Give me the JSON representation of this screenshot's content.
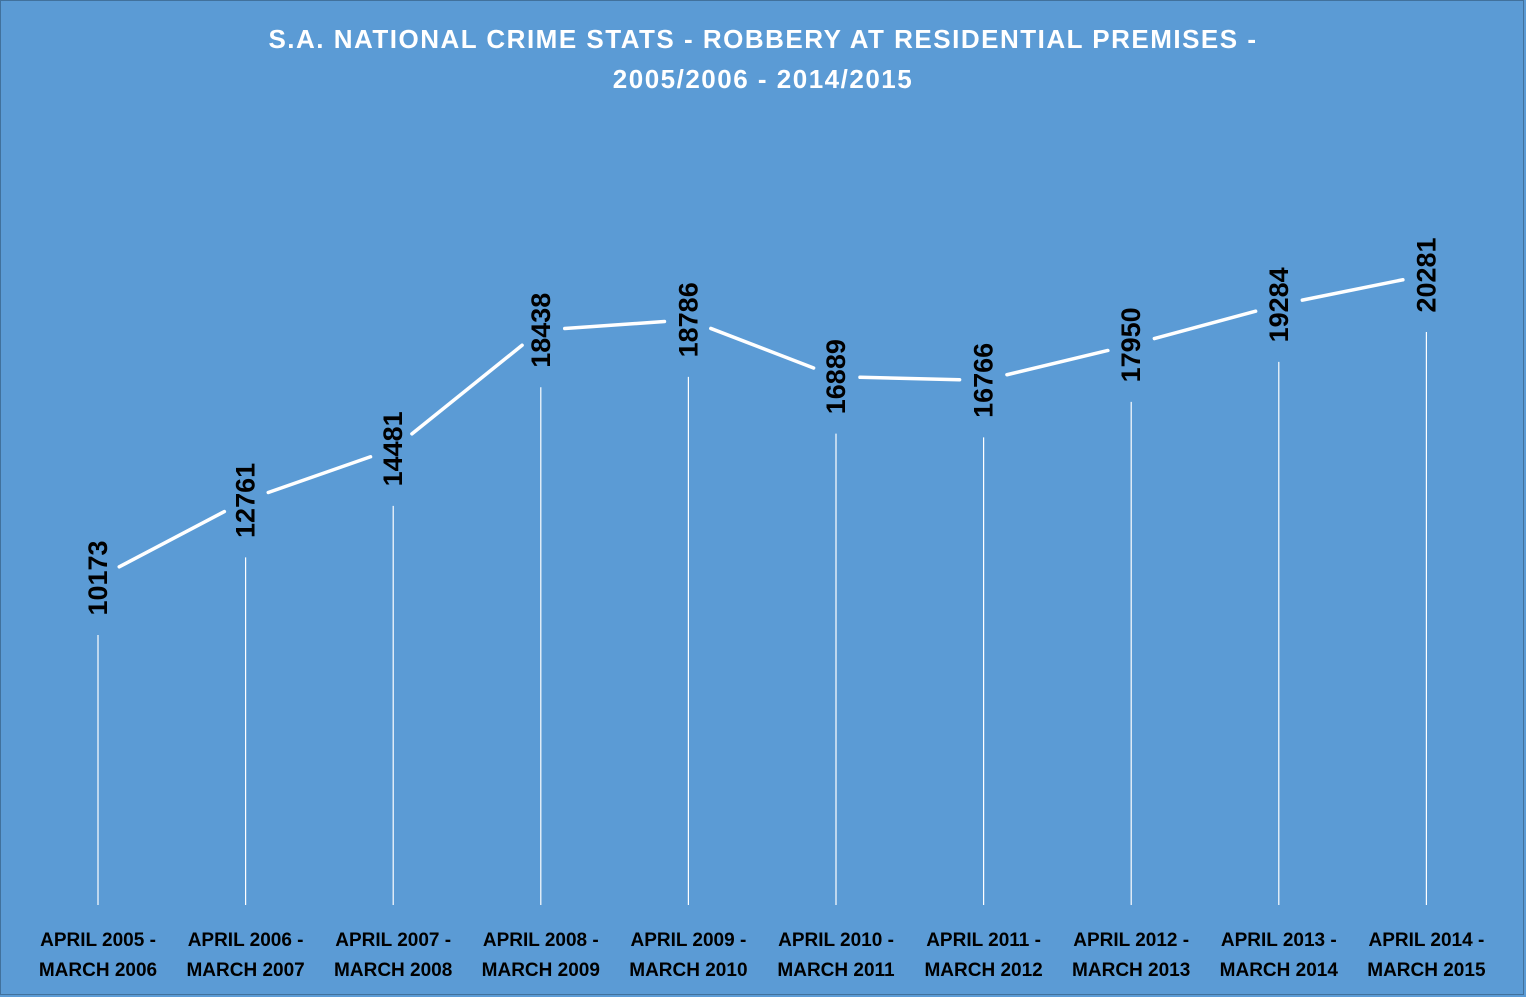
{
  "chart_data": {
    "type": "line",
    "title_lines": [
      "S.A. NATIONAL CRIME STATS - ROBBERY AT RESIDENTIAL PREMISES -",
      "2005/2006 - 2014/2015"
    ],
    "categories": [
      [
        "APRIL 2005 -",
        "MARCH 2006"
      ],
      [
        "APRIL 2006 -",
        "MARCH 2007"
      ],
      [
        "APRIL 2007 -",
        "MARCH 2008"
      ],
      [
        "APRIL 2008 -",
        "MARCH 2009"
      ],
      [
        "APRIL 2009 -",
        "MARCH 2010"
      ],
      [
        "APRIL 2010 -",
        "MARCH 2011"
      ],
      [
        "APRIL 2011 -",
        "MARCH 2012"
      ],
      [
        "APRIL 2012 -",
        "MARCH 2013"
      ],
      [
        "APRIL 2013 -",
        "MARCH 2014"
      ],
      [
        "APRIL 2014 -",
        "MARCH 2015"
      ]
    ],
    "values": [
      10173,
      12761,
      14481,
      18438,
      18786,
      16889,
      16766,
      17950,
      19284,
      20281
    ],
    "data_labels": true,
    "drop_lines": true,
    "grid": false,
    "legend": "none",
    "colors": {
      "background": "#5b9bd5",
      "line": "#ffffff",
      "text": "#000000",
      "title": "#ffffff"
    }
  }
}
